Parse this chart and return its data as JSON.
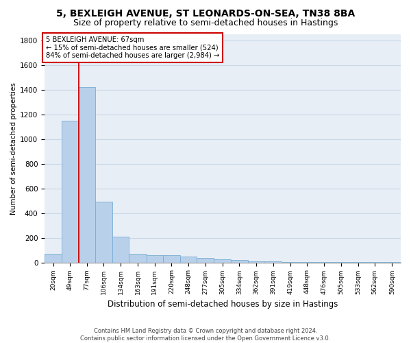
{
  "title": "5, BEXLEIGH AVENUE, ST LEONARDS-ON-SEA, TN38 8BA",
  "subtitle": "Size of property relative to semi-detached houses in Hastings",
  "xlabel": "Distribution of semi-detached houses by size in Hastings",
  "ylabel": "Number of semi-detached properties",
  "footnote1": "Contains HM Land Registry data © Crown copyright and database right 2024.",
  "footnote2": "Contains public sector information licensed under the Open Government Licence v3.0.",
  "annotation_title": "5 BEXLEIGH AVENUE: 67sqm",
  "annotation_line1": "← 15% of semi-detached houses are smaller (524)",
  "annotation_line2": "84% of semi-detached houses are larger (2,984) →",
  "bar_color": "#b8d0ea",
  "bar_edge_color": "#7aadd4",
  "vline_color": "#cc0000",
  "vline_x_bin": 2,
  "categories": [
    "20sqm",
    "49sqm",
    "77sqm",
    "106sqm",
    "134sqm",
    "163sqm",
    "191sqm",
    "220sqm",
    "248sqm",
    "277sqm",
    "305sqm",
    "334sqm",
    "362sqm",
    "391sqm",
    "419sqm",
    "448sqm",
    "476sqm",
    "505sqm",
    "533sqm",
    "562sqm",
    "590sqm"
  ],
  "bin_edges": [
    5.5,
    34.5,
    62.5,
    90.5,
    119.5,
    147.5,
    176.5,
    204.5,
    233.5,
    261.5,
    290.5,
    318.5,
    347.5,
    375.5,
    404.5,
    432.5,
    461.5,
    489.5,
    518.5,
    546.5,
    575.5,
    604.5
  ],
  "values": [
    70,
    1150,
    1420,
    490,
    210,
    72,
    60,
    60,
    48,
    35,
    25,
    18,
    10,
    8,
    5,
    3,
    3,
    2,
    1,
    1,
    1
  ],
  "ylim": [
    0,
    1850
  ],
  "yticks": [
    0,
    200,
    400,
    600,
    800,
    1000,
    1200,
    1400,
    1600,
    1800
  ],
  "grid_color": "#c8d8e8",
  "bg_color": "#e8eef5",
  "title_fontsize": 10,
  "subtitle_fontsize": 9
}
